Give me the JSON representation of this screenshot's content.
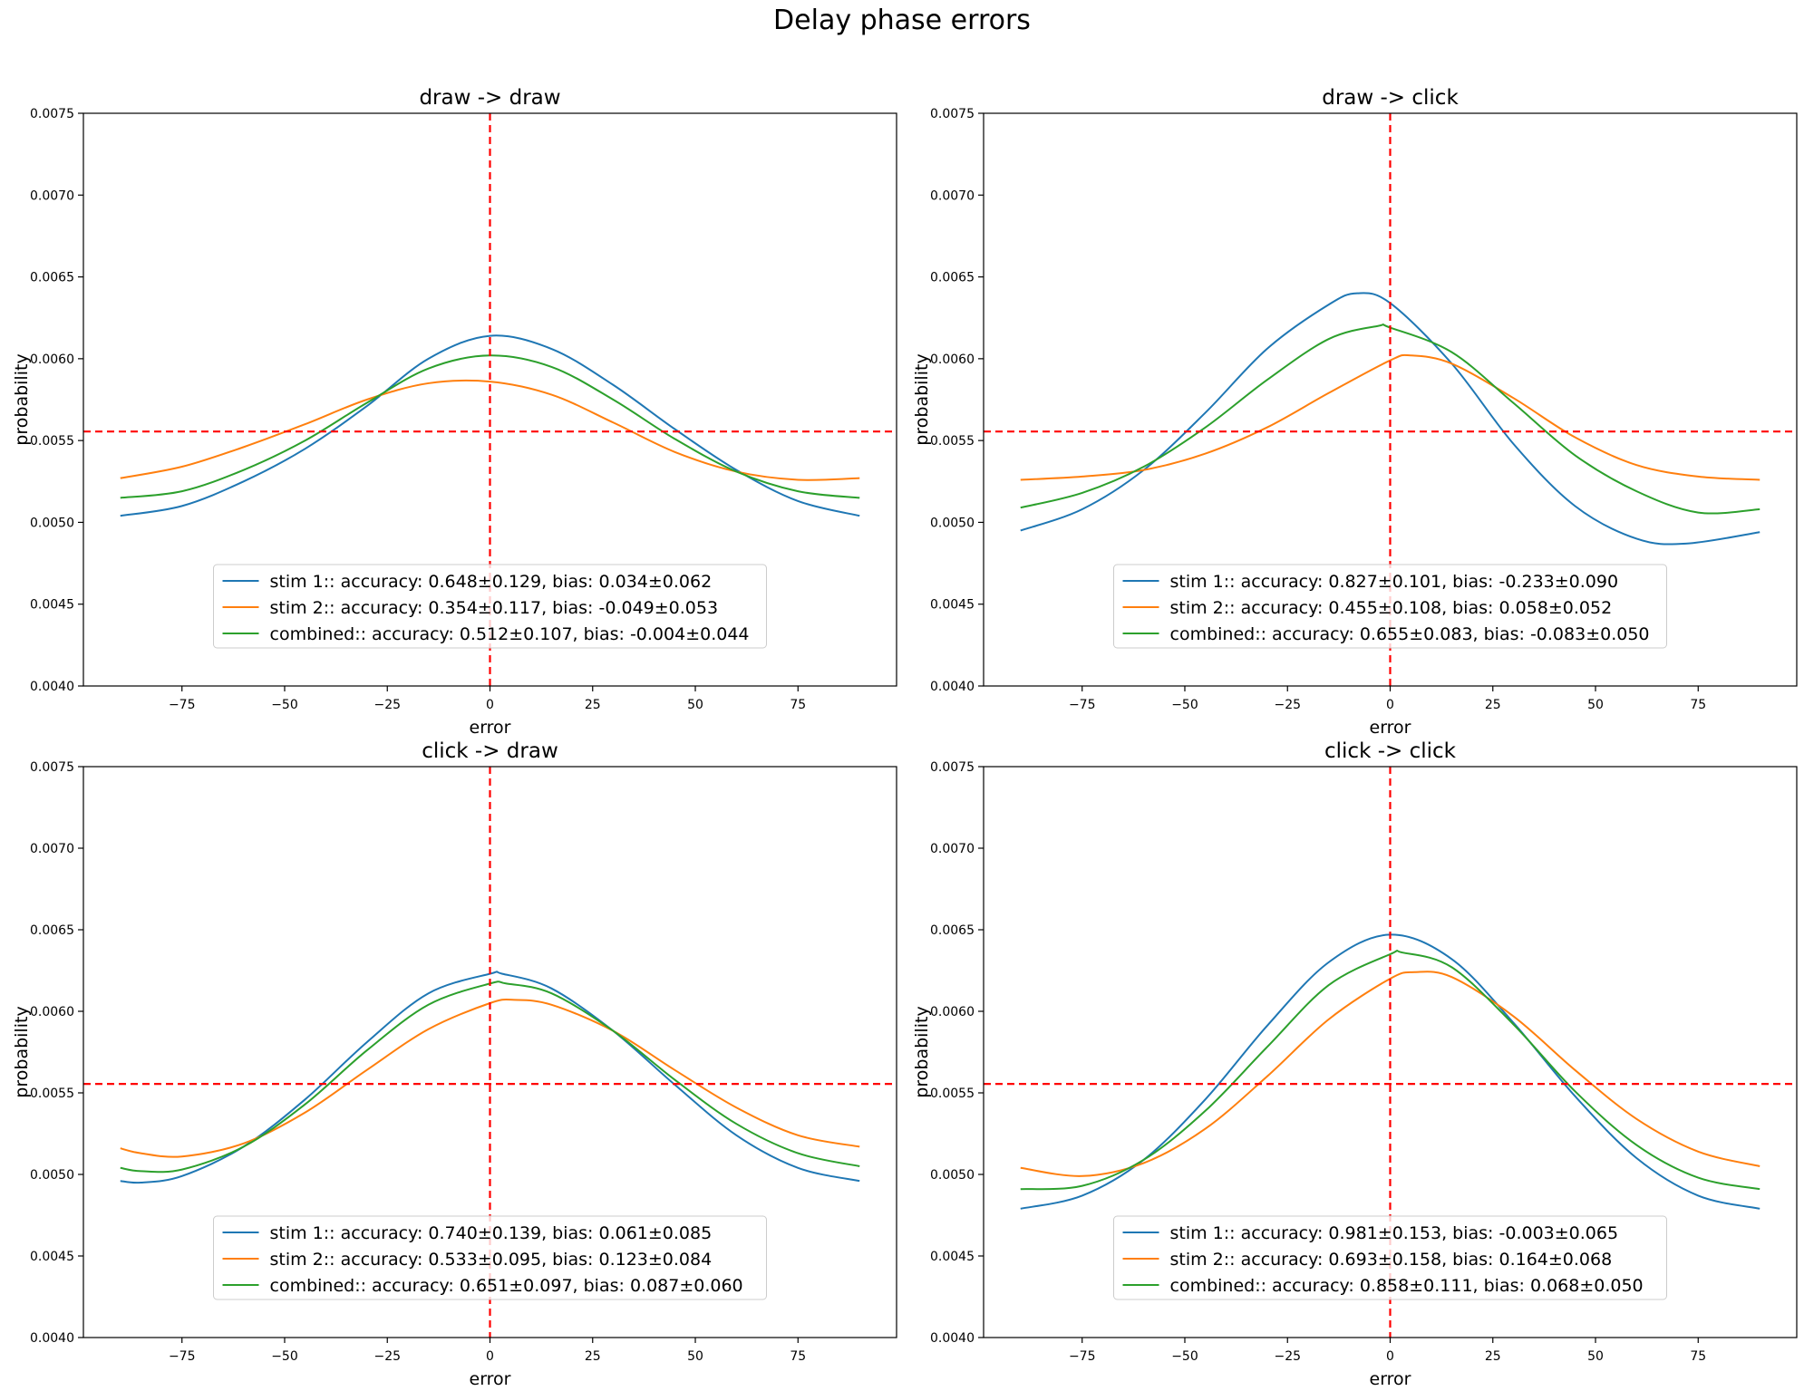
{
  "figure_title": "Delay phase errors",
  "colors": {
    "stim1": "#1f77b4",
    "stim2": "#ff7f0e",
    "combined": "#2ca02c",
    "reference": "#ff0000"
  },
  "chart_data": [
    {
      "type": "line",
      "title": "draw -> draw",
      "xlabel": "error",
      "ylabel": "probability",
      "xlim": [
        -99,
        99
      ],
      "ylim": [
        0.004,
        0.0075
      ],
      "xticks": [
        -75,
        -50,
        -25,
        0,
        25,
        50,
        75
      ],
      "xtick_labels": [
        "−75",
        "−50",
        "−25",
        "0",
        "25",
        "50",
        "75"
      ],
      "yticks": [
        0.004,
        0.0045,
        0.005,
        0.0055,
        0.006,
        0.0065,
        0.007,
        0.0075
      ],
      "ytick_labels": [
        "0.0040",
        "0.0045",
        "0.0050",
        "0.0055",
        "0.0060",
        "0.0065",
        "0.0070",
        "0.0075"
      ],
      "reference_lines": {
        "x": 0,
        "y": 0.005555
      },
      "legend_position": "lower center",
      "series": [
        {
          "name": "stim 1:: accuracy: 0.648±0.129, bias: 0.034±0.062",
          "color_key": "stim1",
          "x": [
            -90,
            -75,
            -60,
            -45,
            -30,
            -15,
            0,
            15,
            30,
            45,
            60,
            75,
            90
          ],
          "y": [
            0.00504,
            0.0051,
            0.00525,
            0.00545,
            0.00571,
            0.006,
            0.00614,
            0.00606,
            0.00584,
            0.00557,
            0.00532,
            0.00513,
            0.00504
          ]
        },
        {
          "name": "stim 2:: accuracy: 0.354±0.117, bias: -0.049±0.053",
          "color_key": "stim2",
          "x": [
            -90,
            -75,
            -60,
            -45,
            -30,
            -15,
            0,
            15,
            30,
            45,
            60,
            75,
            90
          ],
          "y": [
            0.00527,
            0.00534,
            0.00546,
            0.0056,
            0.00575,
            0.00585,
            0.00586,
            0.00578,
            0.00561,
            0.00543,
            0.00531,
            0.00526,
            0.00527
          ]
        },
        {
          "name": "combined:: accuracy: 0.512±0.107, bias: -0.004±0.044",
          "color_key": "combined",
          "x": [
            -90,
            -75,
            -60,
            -45,
            -30,
            -15,
            0,
            15,
            30,
            45,
            60,
            75,
            90
          ],
          "y": [
            0.00515,
            0.00519,
            0.00532,
            0.0055,
            0.00573,
            0.00594,
            0.00602,
            0.00595,
            0.00575,
            0.00551,
            0.00531,
            0.00519,
            0.00515
          ]
        }
      ],
      "legend_labels": {
        "stim1": "stim 1:: accuracy: 0.648±0.129, bias: 0.034±0.062",
        "stim2": "stim 2:: accuracy: 0.354±0.117, bias: -0.049±0.053",
        "combined": "combined:: accuracy: 0.512±0.107, bias: -0.004±0.044"
      }
    },
    {
      "type": "line",
      "title": "draw -> click",
      "xlabel": "error",
      "ylabel": "probability",
      "xlim": [
        -99,
        99
      ],
      "ylim": [
        0.004,
        0.0075
      ],
      "xticks": [
        -75,
        -50,
        -25,
        0,
        25,
        50,
        75
      ],
      "xtick_labels": [
        "−75",
        "−50",
        "−25",
        "0",
        "25",
        "50",
        "75"
      ],
      "yticks": [
        0.004,
        0.0045,
        0.005,
        0.0055,
        0.006,
        0.0065,
        0.007,
        0.0075
      ],
      "ytick_labels": [
        "0.0040",
        "0.0045",
        "0.0050",
        "0.0055",
        "0.0060",
        "0.0065",
        "0.0070",
        "0.0075"
      ],
      "reference_lines": {
        "x": 0,
        "y": 0.005555
      },
      "legend_position": "lower center",
      "series": [
        {
          "name": "stim 1:: accuracy: 0.827±0.101, bias: -0.233±0.090",
          "color_key": "stim1",
          "x": [
            -90,
            -75,
            -60,
            -45,
            -30,
            -15,
            -8,
            0,
            15,
            30,
            45,
            60,
            72,
            90
          ],
          "y": [
            0.00495,
            0.00508,
            0.00532,
            0.00567,
            0.00606,
            0.00633,
            0.0064,
            0.00634,
            0.00597,
            0.00548,
            0.0051,
            0.0049,
            0.00487,
            0.00494
          ]
        },
        {
          "name": "stim 2:: accuracy: 0.455±0.108, bias: 0.058±0.052",
          "color_key": "stim2",
          "x": [
            -90,
            -75,
            -60,
            -45,
            -30,
            -15,
            0,
            5,
            15,
            30,
            45,
            60,
            75,
            90
          ],
          "y": [
            0.00526,
            0.00528,
            0.00532,
            0.00542,
            0.00558,
            0.00579,
            0.00599,
            0.00602,
            0.00597,
            0.00576,
            0.00552,
            0.00535,
            0.00528,
            0.00526
          ]
        },
        {
          "name": "combined:: accuracy: 0.655±0.083, bias: -0.083±0.050",
          "color_key": "combined",
          "x": [
            -90,
            -75,
            -60,
            -45,
            -30,
            -15,
            -3,
            0,
            15,
            30,
            45,
            60,
            75,
            90
          ],
          "y": [
            0.00509,
            0.00518,
            0.00534,
            0.00558,
            0.00587,
            0.00612,
            0.0062,
            0.00619,
            0.00604,
            0.00573,
            0.00541,
            0.00519,
            0.00506,
            0.00508
          ]
        }
      ],
      "legend_labels": {
        "stim1": "stim 1:: accuracy: 0.827±0.101, bias: -0.233±0.090",
        "stim2": "stim 2:: accuracy: 0.455±0.108, bias: 0.058±0.052",
        "combined": "combined:: accuracy: 0.655±0.083, bias: -0.083±0.050"
      }
    },
    {
      "type": "line",
      "title": "click -> draw",
      "xlabel": "error",
      "ylabel": "probability",
      "xlim": [
        -99,
        99
      ],
      "ylim": [
        0.004,
        0.0075
      ],
      "xticks": [
        -75,
        -50,
        -25,
        0,
        25,
        50,
        75
      ],
      "xtick_labels": [
        "−75",
        "−50",
        "−25",
        "0",
        "25",
        "50",
        "75"
      ],
      "yticks": [
        0.004,
        0.0045,
        0.005,
        0.0055,
        0.006,
        0.0065,
        0.007,
        0.0075
      ],
      "ytick_labels": [
        "0.0040",
        "0.0045",
        "0.0050",
        "0.0055",
        "0.0060",
        "0.0065",
        "0.0070",
        "0.0075"
      ],
      "reference_lines": {
        "x": 0,
        "y": 0.005555
      },
      "legend_position": "lower center",
      "series": [
        {
          "name": "stim 1:: accuracy: 0.740±0.139, bias: 0.061±0.085",
          "color_key": "stim1",
          "x": [
            -90,
            -85,
            -75,
            -60,
            -45,
            -30,
            -15,
            0,
            3,
            15,
            30,
            45,
            60,
            75,
            90
          ],
          "y": [
            0.00496,
            0.00495,
            0.00499,
            0.00517,
            0.00546,
            0.00581,
            0.00611,
            0.00623,
            0.00623,
            0.00614,
            0.00588,
            0.00555,
            0.00524,
            0.00504,
            0.00496
          ]
        },
        {
          "name": "stim 2:: accuracy: 0.533±0.095, bias: 0.123±0.084",
          "color_key": "stim2",
          "x": [
            -90,
            -85,
            -75,
            -60,
            -45,
            -30,
            -15,
            0,
            6,
            15,
            30,
            45,
            60,
            75,
            90
          ],
          "y": [
            0.00516,
            0.00513,
            0.00511,
            0.00519,
            0.00538,
            0.00564,
            0.00589,
            0.00605,
            0.00607,
            0.00604,
            0.00588,
            0.00564,
            0.00541,
            0.00524,
            0.00517
          ]
        },
        {
          "name": "combined:: accuracy: 0.651±0.097, bias: 0.087±0.060",
          "color_key": "combined",
          "x": [
            -90,
            -85,
            -75,
            -60,
            -45,
            -30,
            -15,
            0,
            4,
            15,
            30,
            45,
            60,
            75,
            90
          ],
          "y": [
            0.00504,
            0.00502,
            0.00503,
            0.00517,
            0.00543,
            0.00576,
            0.00604,
            0.00617,
            0.00617,
            0.00611,
            0.00588,
            0.00558,
            0.00531,
            0.00513,
            0.00505
          ]
        }
      ],
      "legend_labels": {
        "stim1": "stim 1:: accuracy: 0.740±0.139, bias: 0.061±0.085",
        "stim2": "stim 2:: accuracy: 0.533±0.095, bias: 0.123±0.084",
        "combined": "combined:: accuracy: 0.651±0.097, bias: 0.087±0.060"
      }
    },
    {
      "type": "line",
      "title": "click -> click",
      "xlabel": "error",
      "ylabel": "probability",
      "xlim": [
        -99,
        99
      ],
      "ylim": [
        0.004,
        0.0075
      ],
      "xticks": [
        -75,
        -50,
        -25,
        0,
        25,
        50,
        75
      ],
      "xtick_labels": [
        "−75",
        "−50",
        "−25",
        "0",
        "25",
        "50",
        "75"
      ],
      "yticks": [
        0.004,
        0.0045,
        0.005,
        0.0055,
        0.006,
        0.0065,
        0.007,
        0.0075
      ],
      "ytick_labels": [
        "0.0040",
        "0.0045",
        "0.0050",
        "0.0055",
        "0.0060",
        "0.0065",
        "0.0070",
        "0.0075"
      ],
      "reference_lines": {
        "x": 0,
        "y": 0.005555
      },
      "legend_position": "lower center",
      "series": [
        {
          "name": "stim 1:: accuracy: 0.981±0.153, bias: -0.003±0.065",
          "color_key": "stim1",
          "x": [
            -90,
            -75,
            -60,
            -45,
            -30,
            -15,
            0,
            15,
            30,
            45,
            60,
            75,
            90
          ],
          "y": [
            0.00479,
            0.00487,
            0.00509,
            0.00546,
            0.00591,
            0.0063,
            0.00647,
            0.00632,
            0.00593,
            0.00548,
            0.0051,
            0.00487,
            0.00479
          ]
        },
        {
          "name": "stim 2:: accuracy: 0.693±0.158, bias: 0.164±0.068",
          "color_key": "stim2",
          "x": [
            -90,
            -75,
            -60,
            -45,
            -30,
            -15,
            0,
            6,
            15,
            30,
            45,
            60,
            75,
            90
          ],
          "y": [
            0.00504,
            0.00499,
            0.00507,
            0.00528,
            0.0056,
            0.00595,
            0.0062,
            0.00624,
            0.00621,
            0.00597,
            0.00564,
            0.00534,
            0.00514,
            0.00505
          ]
        },
        {
          "name": "combined:: accuracy: 0.858±0.111, bias: 0.068±0.050",
          "color_key": "combined",
          "x": [
            -90,
            -75,
            -60,
            -45,
            -30,
            -15,
            0,
            3,
            15,
            30,
            45,
            60,
            75,
            90
          ],
          "y": [
            0.00491,
            0.00493,
            0.00509,
            0.00539,
            0.00578,
            0.00616,
            0.00635,
            0.00636,
            0.00627,
            0.00592,
            0.00551,
            0.00518,
            0.00498,
            0.00491
          ]
        }
      ],
      "legend_labels": {
        "stim1": "stim 1:: accuracy: 0.981±0.153, bias: -0.003±0.065",
        "stim2": "stim 2:: accuracy: 0.693±0.158, bias: 0.164±0.068",
        "combined": "combined:: accuracy: 0.858±0.111, bias: 0.068±0.050"
      }
    }
  ]
}
